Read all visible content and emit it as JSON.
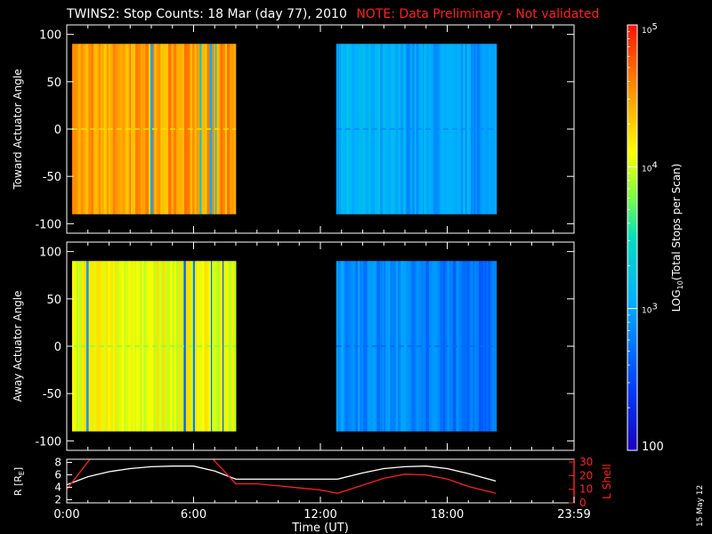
{
  "header": {
    "title": "TWINS2: Stop Counts: 18 Mar (day  77), 2010",
    "note": "NOTE: Data Preliminary - Not validated"
  },
  "stamp": "15 May 12",
  "colors": {
    "background": "#000000",
    "axis": "#ffffff",
    "note": "#ff2020",
    "r_line": "#ffffff",
    "l_shell_line": "#ff2020"
  },
  "chart_data": [
    {
      "type": "heatmap",
      "panel": "top",
      "ylabel": "Toward Actuator Angle",
      "ylim": [
        -110,
        110
      ],
      "yticks": [
        -100,
        -50,
        0,
        50,
        100
      ],
      "xlim_hours": [
        0,
        24
      ],
      "data_blocks": [
        {
          "start": "0:15",
          "end": "8:00",
          "angle_range": [
            -90,
            90
          ],
          "typical_counts": 30000
        },
        {
          "start": "12:45",
          "end": "20:20",
          "angle_range": [
            -90,
            90
          ],
          "typical_counts": 1200
        }
      ]
    },
    {
      "type": "heatmap",
      "panel": "bottom",
      "ylabel": "Away Actuator Angle",
      "ylim": [
        -110,
        110
      ],
      "yticks": [
        -100,
        -50,
        0,
        50,
        100
      ],
      "xlim_hours": [
        0,
        24
      ],
      "data_blocks": [
        {
          "start": "0:15",
          "end": "8:00",
          "angle_range": [
            -90,
            90
          ],
          "typical_counts": 12000
        },
        {
          "start": "12:45",
          "end": "20:20",
          "angle_range": [
            -90,
            90
          ],
          "typical_counts": 800
        }
      ]
    },
    {
      "type": "line",
      "panel": "orbit",
      "xlabel": "Time (UT)",
      "x_ticks": [
        "0:00",
        "6:00",
        "12:00",
        "18:00",
        "23:59"
      ],
      "ylabel_left": "R [RE]",
      "ylabel_left_main": "R [R",
      "ylabel_left_sub": "E",
      "ylabel_left_close": "]",
      "ylim_left": [
        1.5,
        8.5
      ],
      "yticks_left": [
        2,
        4,
        6,
        8
      ],
      "ylabel_right": "L Shell",
      "ylim_right": [
        0,
        32
      ],
      "yticks_right": [
        0,
        10,
        20,
        30
      ],
      "series": [
        {
          "name": "R",
          "axis": "left",
          "x_hours": [
            0,
            1,
            2,
            3,
            4,
            5,
            6,
            7,
            8,
            9,
            10,
            11,
            12,
            12.8,
            14,
            15,
            16,
            17,
            18,
            19,
            20.3
          ],
          "values": [
            4.4,
            5.7,
            6.5,
            7.0,
            7.3,
            7.4,
            7.4,
            6.6,
            5.3,
            5.3,
            5.3,
            5.3,
            5.3,
            5.3,
            6.3,
            7.0,
            7.3,
            7.4,
            7.0,
            6.2,
            5.0
          ]
        },
        {
          "name": "L Shell",
          "axis": "right",
          "x_hours": [
            0,
            1.2,
            null,
            6.8,
            8.0,
            9,
            10,
            11,
            12,
            12.8,
            14,
            15,
            16,
            17,
            18,
            19,
            20.3
          ],
          "values": [
            10,
            34,
            null,
            34,
            14,
            14,
            12.5,
            11,
            9.5,
            7,
            13,
            18,
            21,
            20.5,
            17.5,
            12,
            7
          ]
        }
      ]
    },
    {
      "type": "colorbar",
      "label": "LOG10(Total Stops per Scan)",
      "label_main": "LOG",
      "label_sub": "10",
      "label_rest": "(Total Stops per Scan)",
      "scale": "log",
      "range": [
        100,
        100000
      ],
      "ticks": [
        {
          "value": 100,
          "base": "100",
          "exp": ""
        },
        {
          "value": 1000,
          "base": "10",
          "exp": "3"
        },
        {
          "value": 10000,
          "base": "10",
          "exp": "4"
        },
        {
          "value": 100000,
          "base": "10",
          "exp": "5"
        }
      ]
    }
  ]
}
